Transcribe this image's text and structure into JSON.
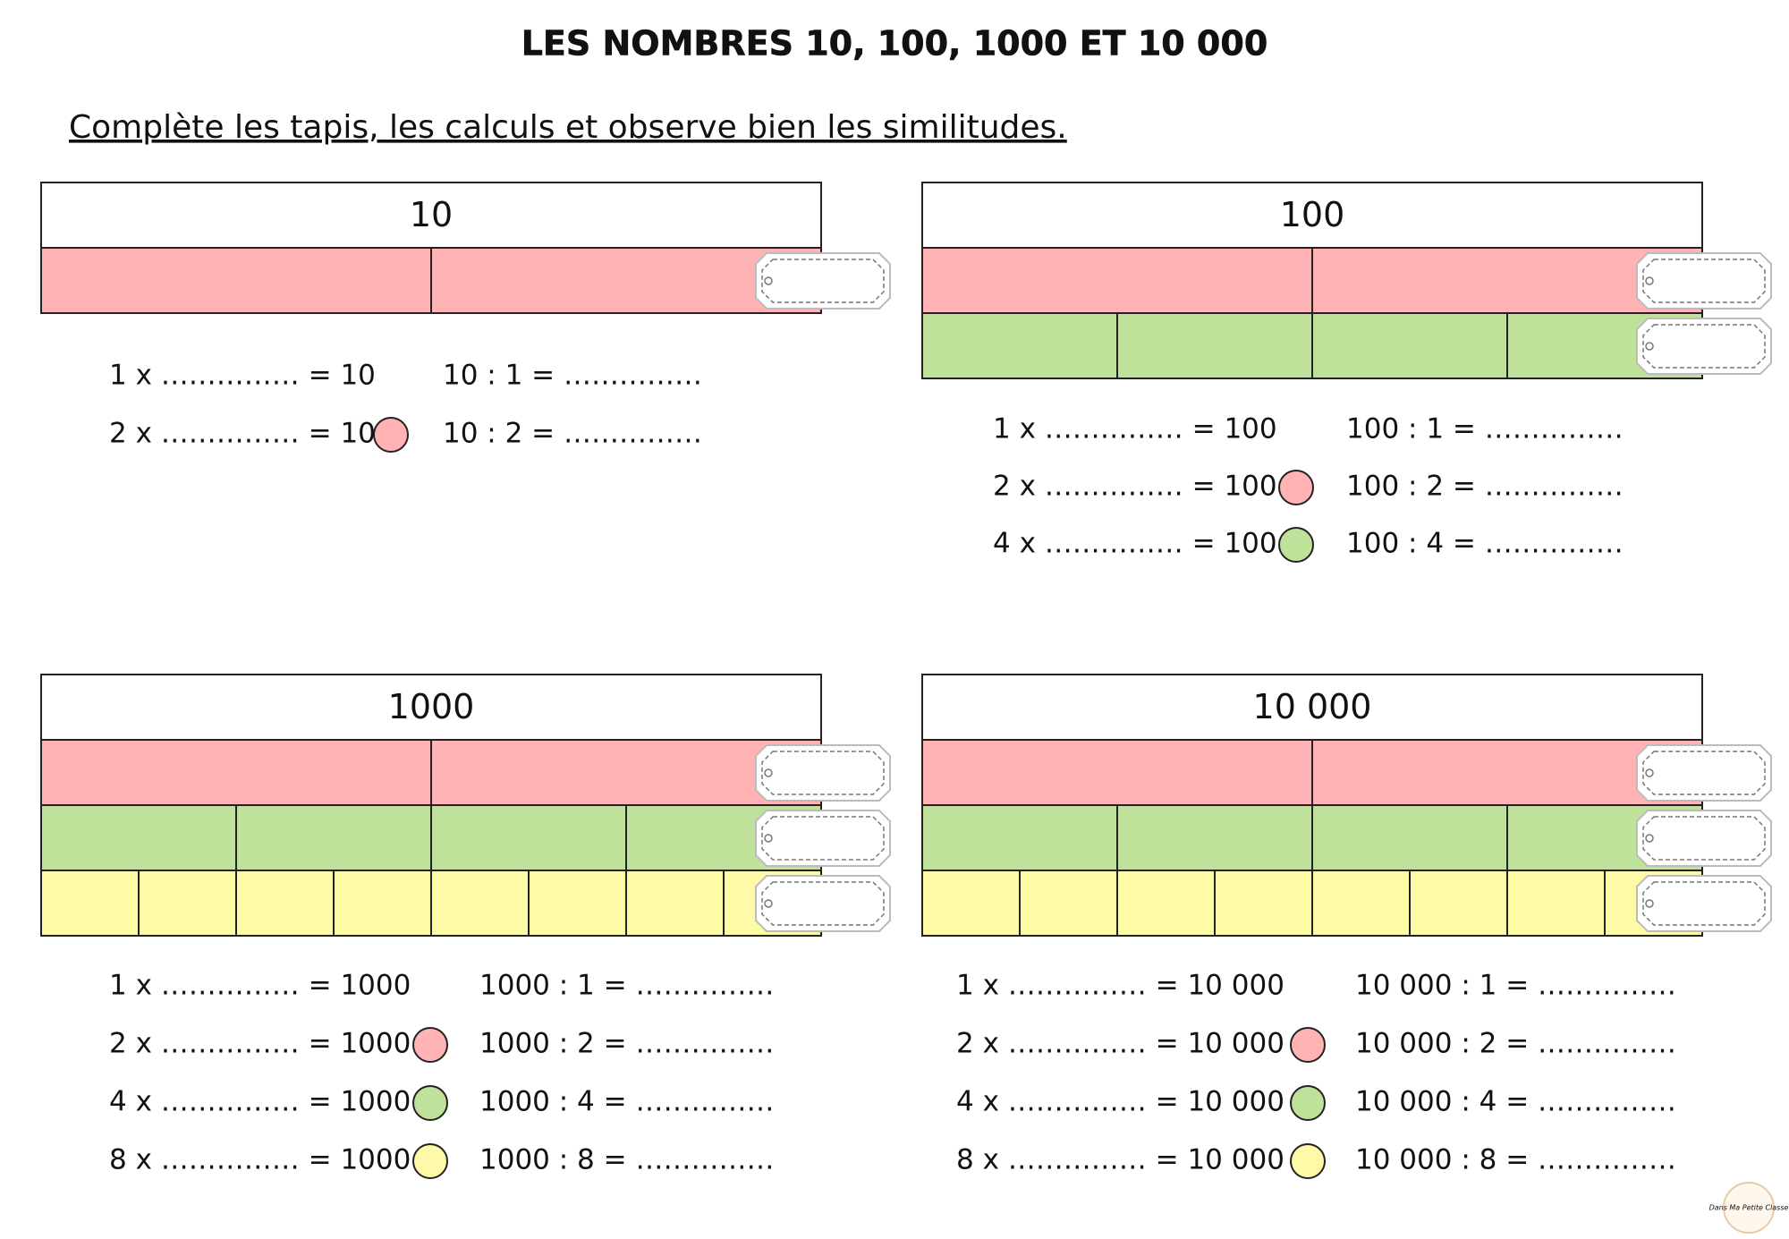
{
  "header": {
    "title": "LES NOMBRES 10, 100, 1000 ET 10 000",
    "instruction": "Complète les tapis, les calculs et observe bien les similitudes."
  },
  "panels": [
    {
      "label": "10",
      "rows": [
        {
          "parts": 2,
          "color": "#ffb3b5"
        }
      ],
      "equations": [
        {
          "left": "1 x …………… = 10",
          "right": "10 : 1 = ……………"
        },
        {
          "left": "2 x …………… = 10",
          "right": "10 : 2 = ……………",
          "circle": "#ffb3b5"
        }
      ]
    },
    {
      "label": "100",
      "rows": [
        {
          "parts": 2,
          "color": "#ffb3b5"
        },
        {
          "parts": 4,
          "color": "#bfe19a"
        }
      ],
      "equations": [
        {
          "left": "1 x …………… = 100",
          "right": "100 : 1 = ……………"
        },
        {
          "left": "2 x …………… = 100",
          "right": "100 : 2 = ……………",
          "circle": "#ffb3b5"
        },
        {
          "left": "4 x …………… = 100",
          "right": "100 : 4 = ……………",
          "circle": "#bfe19a"
        }
      ]
    },
    {
      "label": "1000",
      "rows": [
        {
          "parts": 2,
          "color": "#ffb3b5"
        },
        {
          "parts": 4,
          "color": "#bfe19a"
        },
        {
          "parts": 8,
          "color": "#fffaa8"
        }
      ],
      "equations": [
        {
          "left": "1 x …………… = 1000",
          "right": "1000 : 1 = ……………"
        },
        {
          "left": "2 x …………… = 1000",
          "right": "1000 : 2 = ……………",
          "circle": "#ffb3b5"
        },
        {
          "left": "4 x …………… = 1000",
          "right": "1000 : 4 = ……………",
          "circle": "#bfe19a"
        },
        {
          "left": "8 x …………… = 1000",
          "right": "1000 : 8 = ……………",
          "circle": "#fffaa8"
        }
      ]
    },
    {
      "label": "10 000",
      "rows": [
        {
          "parts": 2,
          "color": "#ffb3b5"
        },
        {
          "parts": 4,
          "color": "#bfe19a"
        },
        {
          "parts": 8,
          "color": "#fffaa8"
        }
      ],
      "equations": [
        {
          "left": "1 x …………… = 10 000",
          "right": "10 000 : 1 = ……………"
        },
        {
          "left": "2 x …………… = 10 000",
          "right": "10 000 : 2 = ……………",
          "circle": "#ffb3b5"
        },
        {
          "left": "4 x …………… = 10 000",
          "right": "10 000 : 4 = ……………",
          "circle": "#bfe19a"
        },
        {
          "left": "8 x …………… = 10 000",
          "right": "10 000 : 8 = ……………",
          "circle": "#fffaa8"
        }
      ]
    }
  ],
  "footer": {
    "logo": "Dans Ma Petite Classe"
  }
}
